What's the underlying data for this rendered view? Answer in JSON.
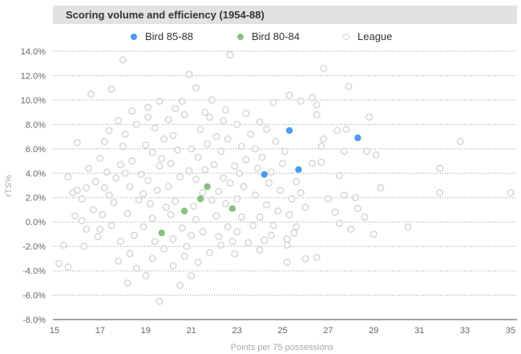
{
  "chart_data": {
    "type": "scatter",
    "title": "Scoring volume and efficiency (1954-88)",
    "xlabel": "Points per 75 possessions",
    "ylabel": "rTS%",
    "xlim": [
      15,
      35
    ],
    "ylim": [
      -8,
      14
    ],
    "x_ticks": [
      "15",
      "17",
      "19",
      "21",
      "23",
      "25",
      "27",
      "29",
      "31",
      "33",
      "35"
    ],
    "y_ticks": [
      "14.0%",
      "12.0%",
      "10.0%",
      "8.0%",
      "6.0%",
      "4.0%",
      "2.0%",
      "0.0%",
      "-2.0%",
      "-4.0%",
      "-6.0%",
      "-8.0%"
    ],
    "grid": "horizontal dotted",
    "legend": "top",
    "series": [
      {
        "name": "Bird 85-88",
        "color": "#4a9ded",
        "marker": "filled",
        "points": [
          [
            24.2,
            3.9
          ],
          [
            25.3,
            7.5
          ],
          [
            25.7,
            4.3
          ],
          [
            28.3,
            6.9
          ]
        ]
      },
      {
        "name": "Bird 80-84",
        "color": "#86c17f",
        "marker": "filled",
        "points": [
          [
            19.7,
            -0.9
          ],
          [
            20.7,
            0.9
          ],
          [
            21.4,
            1.9
          ],
          [
            21.7,
            2.9
          ],
          [
            22.8,
            1.1
          ]
        ]
      },
      {
        "name": "League",
        "color": "#d4d4d4",
        "marker": "hollow",
        "points": [
          [
            26.8,
            12.6
          ],
          [
            27.9,
            11.1
          ],
          [
            25.3,
            10.4
          ],
          [
            26.3,
            10.2
          ],
          [
            25.8,
            9.9
          ],
          [
            26.5,
            9.6
          ],
          [
            24.6,
            9.8
          ],
          [
            26.5,
            8.8
          ],
          [
            28.8,
            8.6
          ],
          [
            27.4,
            7.5
          ],
          [
            27.8,
            7.6
          ],
          [
            32.8,
            6.6
          ],
          [
            26.8,
            6.8
          ],
          [
            26.7,
            6.2
          ],
          [
            27.7,
            5.8
          ],
          [
            28.7,
            5.8
          ],
          [
            29.1,
            5.5
          ],
          [
            31.9,
            4.4
          ],
          [
            26.7,
            4.9
          ],
          [
            26.3,
            4.8
          ],
          [
            27.5,
            3.8
          ],
          [
            29.3,
            2.8
          ],
          [
            31.9,
            2.4
          ],
          [
            35.0,
            2.4
          ],
          [
            27.0,
            1.9
          ],
          [
            27.7,
            2.2
          ],
          [
            28.2,
            2.0
          ],
          [
            28.3,
            1.1
          ],
          [
            27.3,
            0.8
          ],
          [
            28.6,
            0.4
          ],
          [
            30.5,
            -0.4
          ],
          [
            27.5,
            -0.1
          ],
          [
            28.0,
            -0.6
          ],
          [
            29.0,
            -1.0
          ],
          [
            25.6,
            -0.4
          ],
          [
            25.2,
            -1.4
          ],
          [
            25.2,
            -1.9
          ],
          [
            25.2,
            -3.3
          ],
          [
            26.0,
            -3.0
          ],
          [
            26.5,
            -2.9
          ],
          [
            18.0,
            13.3
          ],
          [
            16.6,
            10.5
          ],
          [
            20.9,
            12.1
          ],
          [
            22.7,
            13.7
          ],
          [
            19.6,
            -6.5
          ],
          [
            18.2,
            -5.0
          ],
          [
            15.2,
            -3.4
          ],
          [
            15.6,
            -3.7
          ],
          [
            16.3,
            -2.0
          ],
          [
            20.5,
            -5.2
          ],
          [
            21.0,
            -4.4
          ],
          [
            15.6,
            3.7
          ],
          [
            15.8,
            2.4
          ],
          [
            16.2,
            1.9
          ],
          [
            15.9,
            0.5
          ],
          [
            16.4,
            -0.6
          ],
          [
            16.9,
            -1.2
          ],
          [
            15.4,
            -1.9
          ],
          [
            16.0,
            6.5
          ],
          [
            17.4,
            7.5
          ],
          [
            17.8,
            8.3
          ],
          [
            17.5,
            10.9
          ],
          [
            18.4,
            9.1
          ],
          [
            19.1,
            9.4
          ],
          [
            19.6,
            9.9
          ],
          [
            20.3,
            9.3
          ],
          [
            21.2,
            11.0
          ],
          [
            21.9,
            10.0
          ],
          [
            22.5,
            9.2
          ],
          [
            23.4,
            8.9
          ],
          [
            24.0,
            8.2
          ],
          [
            23.0,
            8.0
          ],
          [
            17.0,
            5.2
          ],
          [
            17.3,
            4.1
          ],
          [
            17.2,
            2.8
          ],
          [
            17.6,
            1.6
          ],
          [
            17.1,
            0.6
          ],
          [
            17.5,
            -0.3
          ],
          [
            17.9,
            -1.6
          ],
          [
            18.3,
            -2.6
          ],
          [
            17.8,
            -3.2
          ],
          [
            18.6,
            -3.8
          ],
          [
            19.0,
            -4.4
          ],
          [
            19.3,
            -3.0
          ],
          [
            19.8,
            -2.2
          ],
          [
            20.2,
            -3.6
          ],
          [
            20.7,
            -2.8
          ],
          [
            21.3,
            -3.3
          ],
          [
            21.8,
            -2.5
          ],
          [
            22.3,
            -1.9
          ],
          [
            22.9,
            -2.6
          ],
          [
            23.5,
            -1.7
          ],
          [
            24.0,
            -2.3
          ],
          [
            24.5,
            -1.1
          ],
          [
            18.0,
            6.2
          ],
          [
            18.4,
            5.0
          ],
          [
            18.8,
            3.9
          ],
          [
            18.3,
            2.9
          ],
          [
            18.7,
            1.8
          ],
          [
            18.2,
            0.7
          ],
          [
            18.9,
            -0.4
          ],
          [
            19.3,
            0.3
          ],
          [
            19.2,
            1.5
          ],
          [
            19.5,
            2.6
          ],
          [
            19.1,
            3.4
          ],
          [
            19.6,
            4.6
          ],
          [
            19.3,
            5.7
          ],
          [
            19.8,
            6.8
          ],
          [
            19.4,
            7.7
          ],
          [
            20.0,
            8.4
          ],
          [
            20.2,
            7.1
          ],
          [
            20.4,
            5.9
          ],
          [
            20.1,
            4.8
          ],
          [
            20.5,
            3.7
          ],
          [
            20.0,
            2.9
          ],
          [
            20.3,
            1.7
          ],
          [
            20.1,
            0.6
          ],
          [
            20.6,
            -0.5
          ],
          [
            20.2,
            -1.4
          ],
          [
            21.0,
            -1.1
          ],
          [
            21.2,
            0.2
          ],
          [
            21.1,
            1.3
          ],
          [
            21.5,
            2.4
          ],
          [
            21.2,
            3.5
          ],
          [
            21.6,
            4.3
          ],
          [
            21.3,
            5.3
          ],
          [
            21.7,
            6.4
          ],
          [
            21.4,
            7.6
          ],
          [
            21.8,
            8.6
          ],
          [
            22.1,
            7.0
          ],
          [
            22.3,
            5.8
          ],
          [
            22.0,
            4.7
          ],
          [
            22.4,
            3.6
          ],
          [
            22.2,
            2.5
          ],
          [
            22.5,
            1.5
          ],
          [
            22.1,
            0.5
          ],
          [
            22.6,
            -0.4
          ],
          [
            22.2,
            -1.2
          ],
          [
            23.0,
            -0.8
          ],
          [
            23.2,
            0.4
          ],
          [
            23.0,
            1.9
          ],
          [
            23.3,
            2.9
          ],
          [
            23.1,
            4.0
          ],
          [
            23.4,
            5.1
          ],
          [
            23.2,
            6.2
          ],
          [
            23.6,
            7.2
          ],
          [
            23.8,
            6.0
          ],
          [
            24.1,
            5.3
          ],
          [
            23.9,
            4.4
          ],
          [
            24.4,
            3.2
          ],
          [
            23.8,
            2.2
          ],
          [
            24.3,
            1.4
          ],
          [
            24.0,
            0.4
          ],
          [
            24.6,
            -0.3
          ],
          [
            24.8,
            0.9
          ],
          [
            24.9,
            2.6
          ],
          [
            25.0,
            4.8
          ],
          [
            24.7,
            6.6
          ],
          [
            25.1,
            5.8
          ],
          [
            25.6,
            3.3
          ],
          [
            25.4,
            1.9
          ],
          [
            25.8,
            2.4
          ],
          [
            26.0,
            1.2
          ],
          [
            16.5,
            4.4
          ],
          [
            16.8,
            3.3
          ],
          [
            16.4,
            2.8
          ],
          [
            16.7,
            1.0
          ],
          [
            17.0,
            -0.6
          ],
          [
            16.2,
            0.1
          ],
          [
            17.7,
            3.6
          ],
          [
            17.9,
            4.7
          ],
          [
            18.1,
            7.2
          ],
          [
            18.6,
            8.0
          ],
          [
            19.0,
            6.3
          ],
          [
            19.7,
            5.2
          ],
          [
            18.9,
            2.3
          ],
          [
            19.9,
            1.2
          ],
          [
            19.4,
            -1.6
          ],
          [
            18.5,
            -1.1
          ],
          [
            20.8,
            -2.0
          ],
          [
            21.5,
            -0.8
          ],
          [
            22.8,
            -1.6
          ],
          [
            23.7,
            -0.3
          ],
          [
            20.7,
            8.8
          ],
          [
            21.0,
            6.0
          ],
          [
            20.9,
            4.2
          ],
          [
            21.9,
            1.8
          ],
          [
            22.7,
            3.2
          ],
          [
            22.9,
            4.6
          ],
          [
            22.6,
            6.8
          ],
          [
            22.4,
            8.3
          ],
          [
            21.6,
            9.0
          ],
          [
            20.6,
            9.9
          ],
          [
            19.1,
            8.6
          ],
          [
            18.1,
            4.0
          ],
          [
            17.4,
            2.2
          ],
          [
            17.2,
            6.6
          ],
          [
            16.0,
            2.6
          ],
          [
            24.3,
            7.6
          ],
          [
            24.5,
            4.1
          ],
          [
            25.3,
            0.6
          ],
          [
            25.5,
            -0.9
          ],
          [
            24.2,
            -1.5
          ]
        ]
      }
    ]
  }
}
